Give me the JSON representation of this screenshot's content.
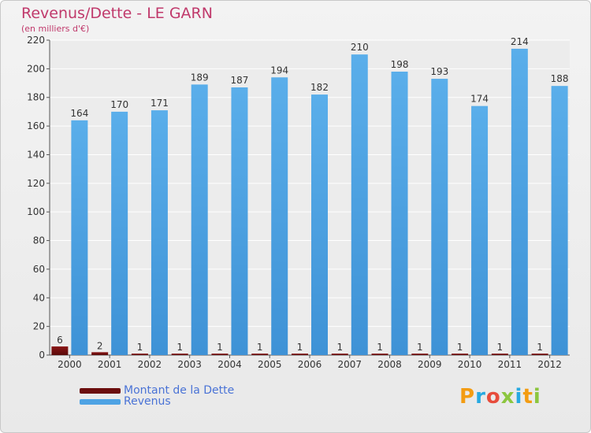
{
  "header": {
    "title": "Revenus/Dette - LE GARN",
    "subtitle": "(en milliers d'€)"
  },
  "legend": {
    "items": [
      {
        "label": "Montant de la Dette",
        "color": "#6b0d0d"
      },
      {
        "label": "Revenus",
        "color": "#4ea3e4"
      }
    ]
  },
  "logo": {
    "letters": [
      "P",
      "r",
      "o",
      "x",
      "i",
      "t",
      "i"
    ],
    "colors": [
      "#f39c12",
      "#27a9e1",
      "#e74c3c",
      "#8cc63f",
      "#27a9e1",
      "#f39c12",
      "#8cc63f"
    ]
  },
  "chart_data": {
    "type": "bar",
    "title": "Revenus/Dette - LE GARN",
    "subtitle": "(en milliers d'€)",
    "categories": [
      "2000",
      "2001",
      "2002",
      "2003",
      "2004",
      "2005",
      "2006",
      "2007",
      "2008",
      "2009",
      "2010",
      "2011",
      "2012"
    ],
    "series": [
      {
        "name": "Montant de la Dette",
        "color": "#6b0d0d",
        "values": [
          6,
          2,
          1,
          1,
          1,
          1,
          1,
          1,
          1,
          1,
          1,
          1,
          1
        ]
      },
      {
        "name": "Revenus",
        "color": "#4ea3e4",
        "values": [
          164,
          170,
          171,
          189,
          187,
          194,
          182,
          210,
          198,
          193,
          174,
          214,
          188
        ]
      }
    ],
    "ylim": [
      0,
      220
    ],
    "yticks": [
      0,
      20,
      40,
      60,
      80,
      100,
      120,
      140,
      160,
      180,
      200,
      220
    ],
    "grid": true,
    "legend_position": "bottom-left"
  }
}
